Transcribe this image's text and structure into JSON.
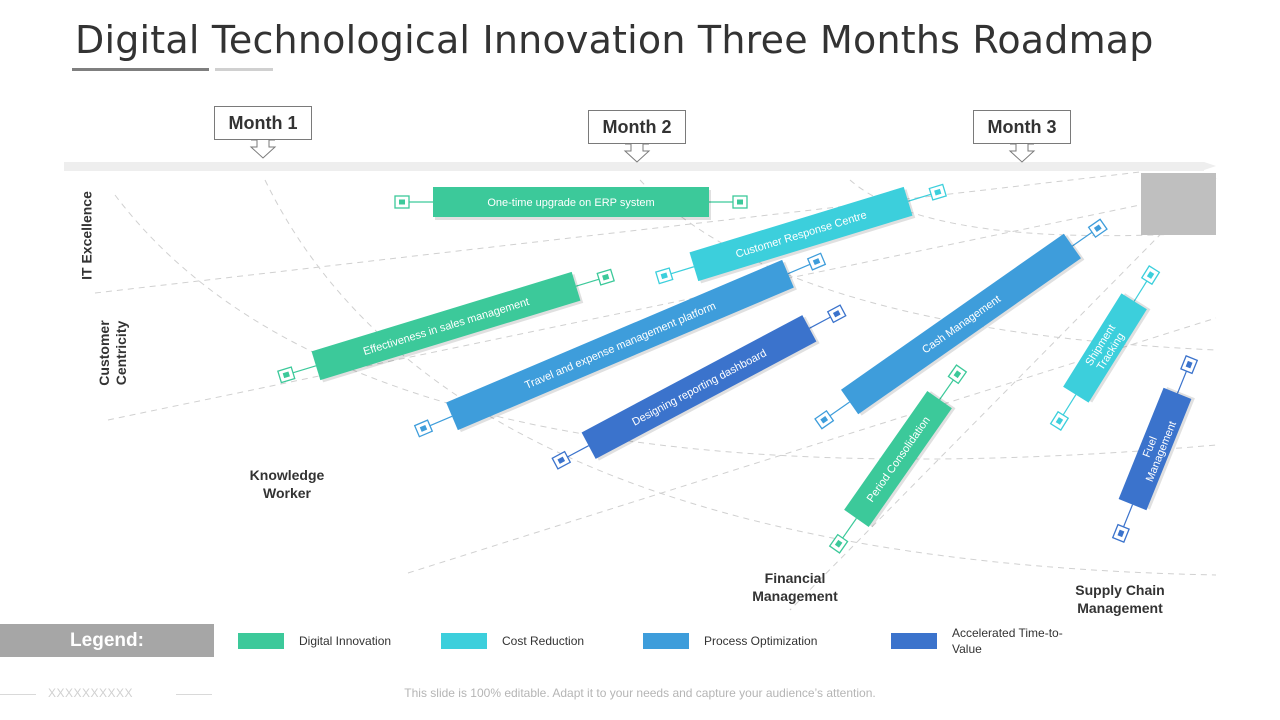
{
  "title": "Digital Technological Innovation Three Months Roadmap",
  "months": [
    "Month 1",
    "Month 2",
    "Month 3"
  ],
  "axis_labels": {
    "it_excellence": "IT Excellence",
    "customer_centricity": "Customer Centricity",
    "knowledge_worker": "Knowledge Worker",
    "financial_management": "Financial Management",
    "supply_chain_management": "Supply Chain Management"
  },
  "colors": {
    "digital_innovation": "#3cc99a",
    "cost_reduction": "#3ccfdc",
    "process_optimization": "#3e9ddb",
    "accelerated_time_to_value": "#3b73cc"
  },
  "bars": [
    {
      "label": "One-time upgrade on ERP system",
      "category": "digital_innovation"
    },
    {
      "label": "Customer Response Centre",
      "category": "cost_reduction"
    },
    {
      "label": "Effectiveness in sales management",
      "category": "digital_innovation"
    },
    {
      "label": "Travel and expense management platform",
      "category": "process_optimization"
    },
    {
      "label": "Designing reporting dashboard",
      "category": "accelerated_time_to_value"
    },
    {
      "label": "Cash Management",
      "category": "process_optimization"
    },
    {
      "label": "Period Consolidation",
      "category": "digital_innovation"
    },
    {
      "label": "Shipment Tracking",
      "category": "cost_reduction"
    },
    {
      "label": "Fuel Management",
      "category": "accelerated_time_to_value"
    }
  ],
  "legend": {
    "title": "Legend:",
    "items": [
      {
        "label": "Digital Innovation",
        "category": "digital_innovation"
      },
      {
        "label": "Cost Reduction",
        "category": "cost_reduction"
      },
      {
        "label": "Process Optimization",
        "category": "process_optimization"
      },
      {
        "label": "Accelerated Time-to-Value",
        "category": "accelerated_time_to_value"
      }
    ]
  },
  "footer": {
    "placeholder": "XXXXXXXXXX",
    "text": "This slide is 100% editable. Adapt it to your needs and capture your audience’s attention."
  }
}
